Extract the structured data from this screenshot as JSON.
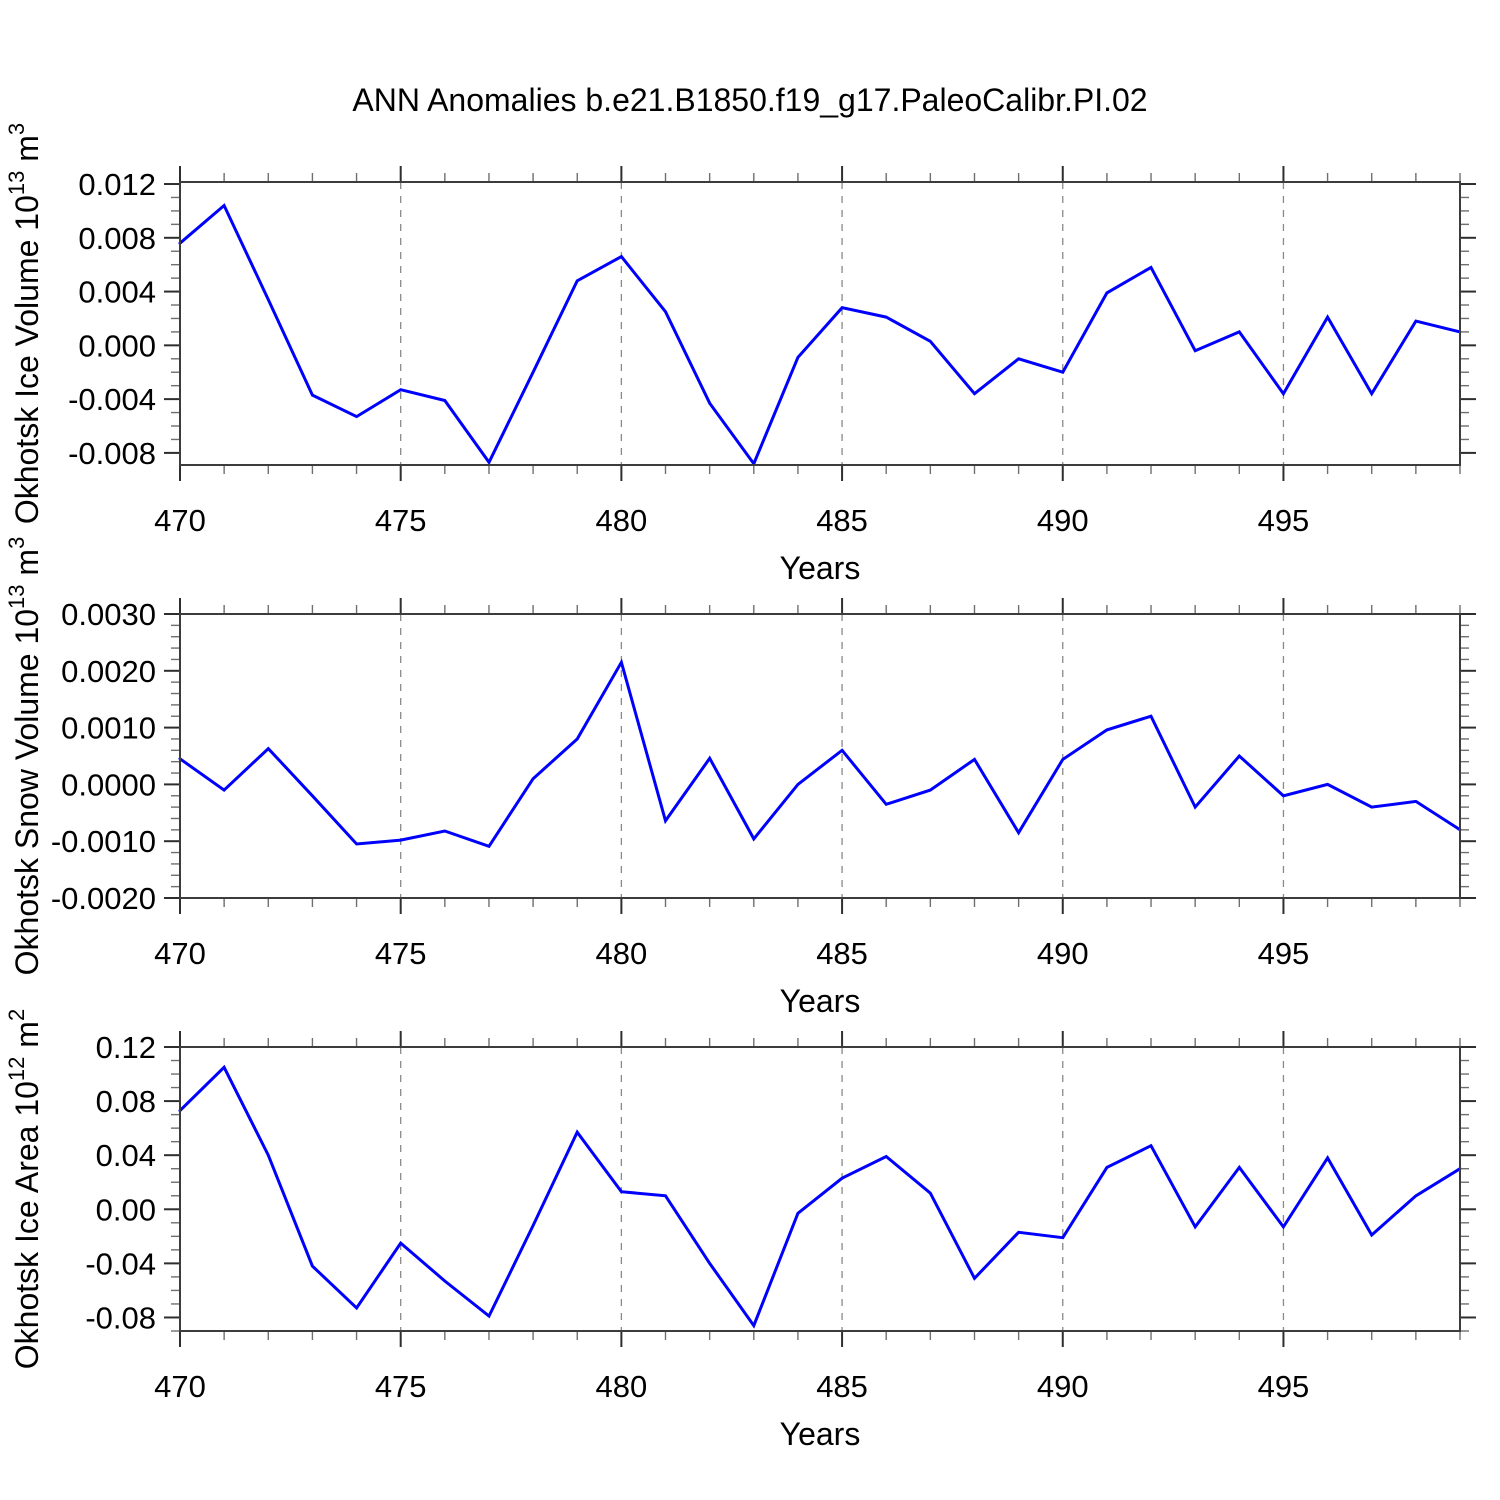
{
  "page_title": "ANN Anomalies b.e21.B1850.f19_g17.PaleoCalibr.PI.02",
  "colors": {
    "line": "#0000ff",
    "grid": "#8a8a8a",
    "axis": "#3c3c3c",
    "text": "#000000"
  },
  "chart_data": [
    {
      "type": "line",
      "series_name": "Okhotsk Ice Volume",
      "ylabel_parts": [
        {
          "t": "Okhotsk Ice Volume 10"
        },
        {
          "t": "13",
          "sup": true
        },
        {
          "t": " m"
        },
        {
          "t": "3",
          "sup": true
        }
      ],
      "xlabel": "Years",
      "x_range": [
        470,
        499
      ],
      "ylim": [
        -0.0089,
        0.01215
      ],
      "x": [
        470,
        471,
        472,
        473,
        474,
        475,
        476,
        477,
        478,
        479,
        480,
        481,
        482,
        483,
        484,
        485,
        486,
        487,
        488,
        489,
        490,
        491,
        492,
        493,
        494,
        495,
        496,
        497,
        498,
        499
      ],
      "values": [
        0.0076,
        0.0104,
        0.0034,
        -0.0037,
        -0.0053,
        -0.0033,
        -0.0041,
        -0.0087,
        -0.002,
        0.0048,
        0.0066,
        0.0025,
        -0.0043,
        -0.0088,
        -0.0009,
        0.0028,
        0.0021,
        0.0003,
        -0.0036,
        -0.001,
        -0.002,
        0.0039,
        0.0058,
        -0.0004,
        0.001,
        -0.0036,
        0.0021,
        -0.0036,
        0.0018,
        0.001
      ],
      "x_major_ticks": [
        470,
        475,
        480,
        485,
        490,
        495
      ],
      "x_major_labels": [
        "470",
        "475",
        "480",
        "485",
        "490",
        "495"
      ],
      "x_minor_step": 1,
      "x_gridlines": [
        475,
        480,
        485,
        490,
        495
      ],
      "y_major_ticks": [
        0.012,
        0.008,
        0.004,
        0.0,
        -0.004,
        -0.008
      ],
      "y_major_labels": [
        "0.012",
        "0.008",
        "0.004",
        "0.000",
        "-0.004",
        "-0.008"
      ],
      "y_minor_step": 0.001,
      "grid": "vertical-dashed",
      "legend": "none"
    },
    {
      "type": "line",
      "series_name": "Okhotsk Snow Volume",
      "ylabel_parts": [
        {
          "t": "Okhotsk Snow Volume 10"
        },
        {
          "t": "13",
          "sup": true
        },
        {
          "t": " m"
        },
        {
          "t": "3",
          "sup": true
        }
      ],
      "xlabel": "Years",
      "x_range": [
        470,
        499
      ],
      "ylim": [
        -0.002,
        0.003
      ],
      "x": [
        470,
        471,
        472,
        473,
        474,
        475,
        476,
        477,
        478,
        479,
        480,
        481,
        482,
        483,
        484,
        485,
        486,
        487,
        488,
        489,
        490,
        491,
        492,
        493,
        494,
        495,
        496,
        497,
        498,
        499
      ],
      "values": [
        0.00045,
        -0.0001,
        0.00063,
        -0.0002,
        -0.00105,
        -0.00098,
        -0.00082,
        -0.00109,
        0.0001,
        0.0008,
        0.00215,
        -0.00064,
        0.00046,
        -0.00096,
        0.0,
        0.0006,
        -0.00035,
        -0.0001,
        0.00044,
        -0.00085,
        0.00044,
        0.00096,
        0.0012,
        -0.0004,
        0.0005,
        -0.0002,
        0.0,
        -0.0004,
        -0.0003,
        -0.0008
      ],
      "x_major_ticks": [
        470,
        475,
        480,
        485,
        490,
        495
      ],
      "x_major_labels": [
        "470",
        "475",
        "480",
        "485",
        "490",
        "495"
      ],
      "x_minor_step": 1,
      "x_gridlines": [
        475,
        480,
        485,
        490,
        495
      ],
      "y_major_ticks": [
        0.003,
        0.002,
        0.001,
        0.0,
        -0.001,
        -0.002
      ],
      "y_major_labels": [
        "0.0030",
        "0.0020",
        "0.0010",
        "0.0000",
        "-0.0010",
        "-0.0020"
      ],
      "y_minor_step": 0.0002,
      "grid": "vertical-dashed",
      "legend": "none"
    },
    {
      "type": "line",
      "series_name": "Okhotsk Ice Area",
      "ylabel_parts": [
        {
          "t": "Okhotsk Ice Area 10"
        },
        {
          "t": "12",
          "sup": true
        },
        {
          "t": " m"
        },
        {
          "t": "2",
          "sup": true
        }
      ],
      "xlabel": "Years",
      "x_range": [
        470,
        499
      ],
      "ylim": [
        -0.09,
        0.12
      ],
      "x": [
        470,
        471,
        472,
        473,
        474,
        475,
        476,
        477,
        478,
        479,
        480,
        481,
        482,
        483,
        484,
        485,
        486,
        487,
        488,
        489,
        490,
        491,
        492,
        493,
        494,
        495,
        496,
        497,
        498,
        499
      ],
      "values": [
        0.073,
        0.105,
        0.04,
        -0.042,
        -0.073,
        -0.025,
        -0.053,
        -0.079,
        -0.012,
        0.057,
        0.013,
        0.01,
        -0.04,
        -0.086,
        -0.003,
        0.023,
        0.039,
        0.012,
        -0.051,
        -0.017,
        -0.021,
        0.031,
        0.047,
        -0.013,
        0.031,
        -0.013,
        0.038,
        -0.019,
        0.01,
        0.03
      ],
      "x_major_ticks": [
        470,
        475,
        480,
        485,
        490,
        495
      ],
      "x_major_labels": [
        "470",
        "475",
        "480",
        "485",
        "490",
        "495"
      ],
      "x_minor_step": 1,
      "x_gridlines": [
        475,
        480,
        485,
        490,
        495
      ],
      "y_major_ticks": [
        0.12,
        0.08,
        0.04,
        0.0,
        -0.04,
        -0.08
      ],
      "y_major_labels": [
        "0.12",
        "0.08",
        "0.04",
        "0.00",
        "-0.04",
        "-0.08"
      ],
      "y_minor_step": 0.01,
      "grid": "vertical-dashed",
      "legend": "none"
    }
  ]
}
